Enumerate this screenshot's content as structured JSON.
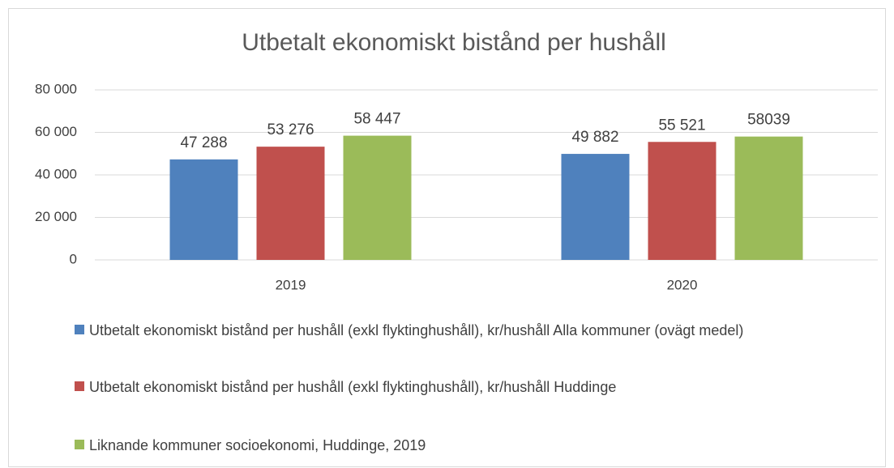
{
  "chart_data": {
    "type": "bar",
    "title": "Utbetalt ekonomiskt bistånd per hushåll",
    "categories": [
      "2019",
      "2020"
    ],
    "series": [
      {
        "name": "Utbetalt ekonomiskt bistånd per hushåll (exkl flyktinghushåll), kr/hushåll Alla kommuner (ovägt medel)",
        "color": "#4f81bd",
        "values": [
          47288,
          49882
        ],
        "value_labels": [
          "47 288",
          "49 882"
        ]
      },
      {
        "name": "Utbetalt ekonomiskt bistånd per hushåll (exkl flyktinghushåll), kr/hushåll Huddinge",
        "color": "#c0504d",
        "values": [
          53276,
          55521
        ],
        "value_labels": [
          "53 276",
          "55 521"
        ]
      },
      {
        "name": "Liknande kommuner socioekonomi, Huddinge, 2019",
        "color": "#9bbb59",
        "values": [
          58447,
          58039
        ],
        "value_labels": [
          "58 447",
          "58039"
        ]
      }
    ],
    "ylim": [
      0,
      80000
    ],
    "yticks": [
      0,
      {
        "value": 20000,
        "label": "20 000"
      },
      {
        "value": 40000,
        "label": "40 000"
      },
      {
        "value": 60000,
        "label": "60 000"
      },
      {
        "value": 80000,
        "label": "80 000"
      }
    ],
    "grid": true,
    "legend": "bottom"
  }
}
